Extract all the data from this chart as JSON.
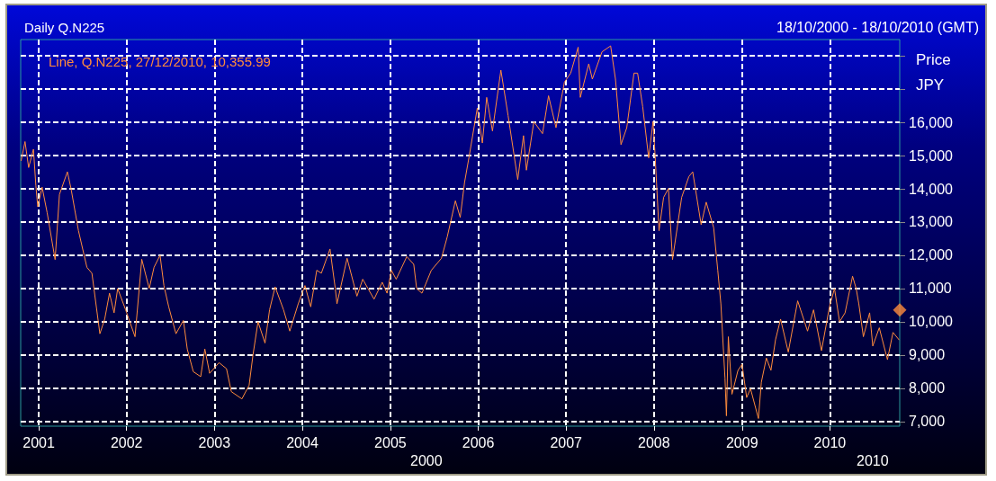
{
  "chart_data": {
    "type": "line",
    "title": "Daily Q.N225",
    "subtitle": "18/10/2000 - 18/10/2010 (GMT)",
    "ylabel": "Price JPY",
    "annotations": [
      "2000",
      "2010"
    ],
    "x": [
      "2000-10-20",
      "2000-11-05",
      "2000-11-20",
      "2000-12-10",
      "2000-12-20",
      "2000-12-28",
      "2001-01-15",
      "2001-02-05",
      "2001-03-10",
      "2001-03-28",
      "2001-04-30",
      "2001-05-15",
      "2001-06-15",
      "2001-07-20",
      "2001-08-10",
      "2001-09-12",
      "2001-10-02",
      "2001-10-22",
      "2001-11-10",
      "2001-11-25",
      "2001-12-28",
      "2002-02-05",
      "2002-03-05",
      "2002-04-05",
      "2002-04-25",
      "2002-05-20",
      "2002-06-05",
      "2002-06-25",
      "2002-07-25",
      "2002-08-25",
      "2002-09-10",
      "2002-10-05",
      "2002-11-05",
      "2002-11-22",
      "2002-12-12",
      "2003-01-20",
      "2003-02-20",
      "2003-03-12",
      "2003-04-25",
      "2003-05-25",
      "2003-06-10",
      "2003-07-01",
      "2003-07-30",
      "2003-08-18",
      "2003-09-10",
      "2003-10-15",
      "2003-11-10",
      "2003-12-15",
      "2004-01-12",
      "2004-02-05",
      "2004-03-01",
      "2004-03-20",
      "2004-04-25",
      "2004-05-17",
      "2004-05-24",
      "2004-07-05",
      "2004-08-15",
      "2004-09-08",
      "2004-10-25",
      "2004-11-28",
      "2004-12-18",
      "2005-01-05",
      "2005-01-25",
      "2005-03-10",
      "2005-04-08",
      "2005-04-20",
      "2005-05-12",
      "2005-06-20",
      "2005-08-01",
      "2005-08-25",
      "2005-09-28",
      "2005-10-18",
      "2005-11-05",
      "2005-11-25",
      "2005-12-28",
      "2006-01-18",
      "2006-02-05",
      "2006-03-01",
      "2006-04-05",
      "2006-05-05",
      "2006-06-14",
      "2006-07-08",
      "2006-07-20",
      "2006-08-20",
      "2006-09-25",
      "2006-10-20",
      "2006-11-20",
      "2006-12-25",
      "2007-01-20",
      "2007-02-20",
      "2007-03-01",
      "2007-04-05",
      "2007-04-20",
      "2007-05-30",
      "2007-07-05",
      "2007-07-25",
      "2007-08-17",
      "2007-09-10",
      "2007-10-10",
      "2007-10-25",
      "2007-11-15",
      "2007-12-10",
      "2007-12-28",
      "2008-01-05",
      "2008-01-22",
      "2008-02-10",
      "2008-03-01",
      "2008-03-18",
      "2008-04-25",
      "2008-05-25",
      "2008-06-10",
      "2008-07-15",
      "2008-08-05",
      "2008-09-05",
      "2008-09-22",
      "2008-10-05",
      "2008-10-22",
      "2008-10-28",
      "2008-11-05",
      "2008-11-20",
      "2008-12-15",
      "2009-01-01",
      "2009-01-20",
      "2009-02-05",
      "2009-03-10",
      "2009-03-22",
      "2009-04-12",
      "2009-05-01",
      "2009-05-20",
      "2009-06-10",
      "2009-07-12",
      "2009-08-20",
      "2009-09-30",
      "2009-10-25",
      "2009-11-27",
      "2009-12-30",
      "2010-01-20",
      "2010-02-10",
      "2010-03-05",
      "2010-04-05",
      "2010-04-20",
      "2010-05-01",
      "2010-05-20",
      "2010-06-15",
      "2010-06-28",
      "2010-07-25",
      "2010-08-28",
      "2010-09-20",
      "2010-10-15"
    ],
    "series": [
      {
        "name": "Line, Q.N225, 27/12/2010, 10,355.99",
        "color": "#ff8c3c",
        "values": [
          14850,
          15420,
          14640,
          15190,
          14100,
          13460,
          14050,
          13280,
          11870,
          13830,
          14510,
          14010,
          12740,
          11640,
          11460,
          9640,
          10080,
          10860,
          10270,
          11000,
          10360,
          9550,
          11880,
          11000,
          11640,
          12000,
          11090,
          10450,
          9640,
          10040,
          9180,
          8500,
          8350,
          9180,
          8450,
          8770,
          8590,
          7900,
          7680,
          8090,
          9000,
          10000,
          9360,
          10360,
          11050,
          10360,
          9720,
          10540,
          11090,
          10450,
          11550,
          11460,
          12190,
          11000,
          10540,
          11910,
          10770,
          11280,
          10680,
          11190,
          10860,
          11550,
          11280,
          11960,
          11730,
          11000,
          10860,
          11550,
          11910,
          12550,
          13640,
          13140,
          14190,
          15010,
          16430,
          15380,
          16750,
          15740,
          17570,
          16200,
          14280,
          15600,
          14560,
          16020,
          15660,
          16800,
          15840,
          17210,
          17480,
          18260,
          16750,
          17760,
          17300,
          18120,
          18300,
          17300,
          15330,
          15840,
          17480,
          17480,
          16480,
          14930,
          16020,
          15100,
          12740,
          13740,
          14010,
          11870,
          13740,
          14370,
          14510,
          12920,
          13600,
          12830,
          11550,
          10540,
          8310,
          7170,
          9550,
          7820,
          8540,
          8720,
          7720,
          7990,
          7090,
          8180,
          8910,
          8540,
          9460,
          10080,
          9090,
          10630,
          9720,
          10360,
          9130,
          10450,
          11000,
          10000,
          10270,
          11370,
          11000,
          10540,
          9550,
          10270,
          9270,
          9820,
          8860,
          9680,
          9460
        ]
      },
      {
        "type": "scatter",
        "marker": "diamond",
        "color": "#ff8c3c",
        "x": [
          "2010-10-18"
        ],
        "values": [
          10355.99
        ]
      }
    ],
    "xlim": [
      "2000-10-18",
      "2010-10-18"
    ],
    "xticks": [
      {
        "value": "2001-01-01",
        "label": "2001"
      },
      {
        "value": "2002-01-01",
        "label": "2002"
      },
      {
        "value": "2003-01-01",
        "label": "2003"
      },
      {
        "value": "2004-01-01",
        "label": "2004"
      },
      {
        "value": "2005-01-01",
        "label": "2005"
      },
      {
        "value": "2006-01-01",
        "label": "2006"
      },
      {
        "value": "2007-01-01",
        "label": "2007"
      },
      {
        "value": "2008-01-01",
        "label": "2008"
      },
      {
        "value": "2009-01-01",
        "label": "2009"
      },
      {
        "value": "2010-01-01",
        "label": "2010"
      }
    ],
    "ylim": [
      6860,
      18490
    ],
    "yticks": [
      {
        "value": 7000,
        "label": "7,000"
      },
      {
        "value": 8000,
        "label": "8,000"
      },
      {
        "value": 9000,
        "label": "9,000"
      },
      {
        "value": 10000,
        "label": "10,000"
      },
      {
        "value": 11000,
        "label": "11,000"
      },
      {
        "value": 12000,
        "label": "12,000"
      },
      {
        "value": 13000,
        "label": "13,000"
      },
      {
        "value": 14000,
        "label": "14,000"
      },
      {
        "value": 15000,
        "label": "15,000"
      },
      {
        "value": 16000,
        "label": "16,000"
      },
      {
        "value": 17000,
        "label": null
      },
      {
        "value": 18000,
        "label": null
      }
    ],
    "grid": true,
    "legend": "top left",
    "marker": "none",
    "line_style": "solid"
  }
}
